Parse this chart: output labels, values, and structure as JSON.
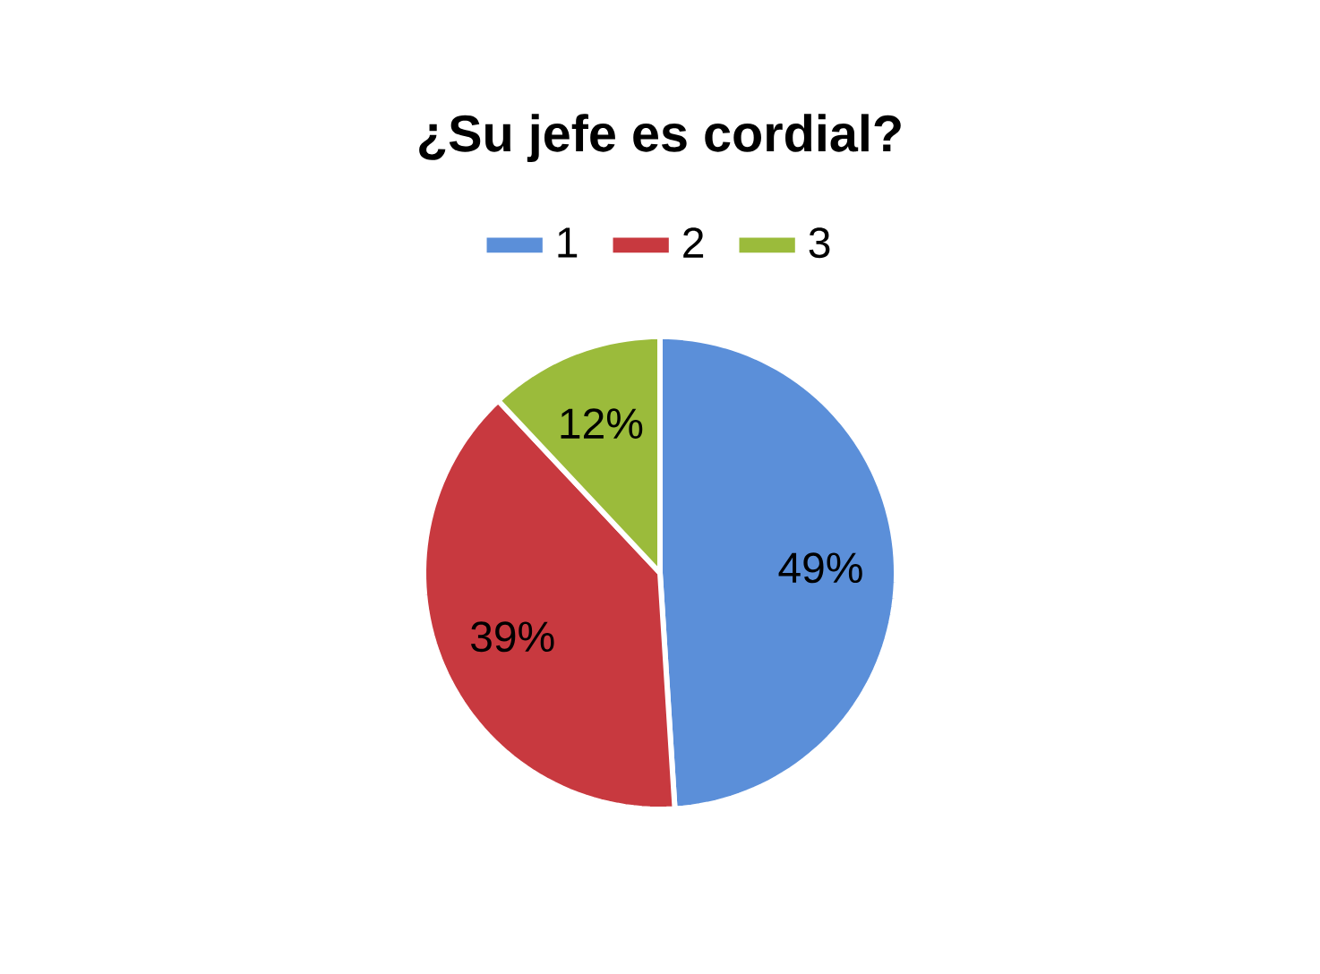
{
  "chart_data": {
    "type": "pie",
    "title": "¿Su jefe es cordial?",
    "categories": [
      "1",
      "2",
      "3"
    ],
    "values": [
      49,
      39,
      12
    ],
    "colors": [
      "#5b8fd9",
      "#c8393f",
      "#9bbb3b"
    ],
    "value_labels": [
      "49%",
      "39%",
      "12%"
    ],
    "legend": "top"
  }
}
